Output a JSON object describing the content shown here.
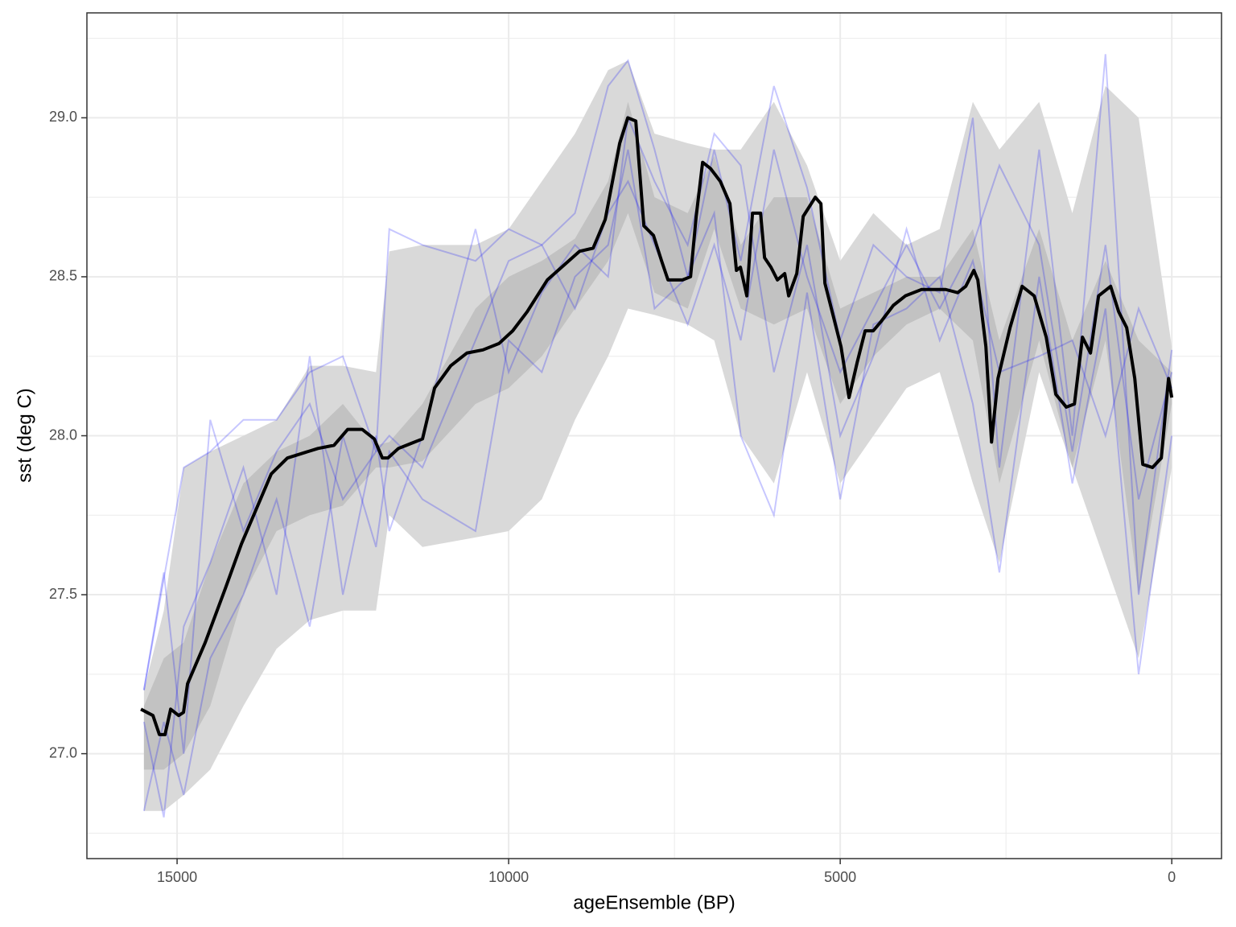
{
  "chart_data": {
    "type": "line",
    "x_label": "ageEnsemble (BP)",
    "y_label": "sst (deg C)",
    "xlim": [
      16360,
      -750
    ],
    "ylim": [
      26.67,
      29.33
    ],
    "xticks": [
      15000,
      10000,
      5000,
      0
    ],
    "yticks": [
      {
        "value": 27,
        "label": "27.0"
      },
      {
        "value": 27.5,
        "label": "27.5"
      },
      {
        "value": 28,
        "label": "28.0"
      },
      {
        "value": 28.5,
        "label": "28.5"
      },
      {
        "value": 29,
        "label": "29.0"
      }
    ],
    "x_minor_grid": [
      12500,
      7500,
      2500
    ],
    "y_minor_grid": [
      26.75,
      27.25,
      27.75,
      28.25,
      28.75,
      29.25
    ],
    "grid": true,
    "bands": {
      "x": [
        15500,
        15200,
        14900,
        14500,
        14000,
        13500,
        13000,
        12500,
        12000,
        11800,
        11300,
        10500,
        10000,
        9500,
        9000,
        8500,
        8200,
        7800,
        7300,
        6900,
        6500,
        6000,
        5500,
        5000,
        4500,
        4000,
        3500,
        3000,
        2600,
        2000,
        1500,
        1000,
        500,
        0
      ],
      "outer": {
        "color": "#d9d9d9",
        "upper": [
          27.2,
          27.45,
          27.9,
          27.95,
          28.0,
          28.05,
          28.22,
          28.22,
          28.2,
          28.58,
          28.6,
          28.6,
          28.65,
          28.8,
          28.95,
          29.15,
          29.18,
          28.95,
          28.92,
          28.9,
          28.9,
          29.05,
          28.85,
          28.55,
          28.7,
          28.6,
          28.65,
          29.05,
          28.9,
          29.05,
          28.7,
          29.1,
          29.0,
          28.28
        ],
        "lower": [
          26.82,
          26.82,
          26.87,
          26.95,
          27.15,
          27.33,
          27.42,
          27.45,
          27.45,
          27.75,
          27.65,
          27.68,
          27.7,
          27.8,
          28.05,
          28.25,
          28.4,
          28.38,
          28.35,
          28.3,
          28.0,
          27.85,
          28.2,
          27.85,
          28.0,
          28.15,
          28.2,
          27.85,
          27.6,
          28.2,
          27.9,
          27.6,
          27.3,
          27.9
        ]
      },
      "inner": {
        "color": "#b3b3b3",
        "upper": [
          27.15,
          27.3,
          27.35,
          27.6,
          27.85,
          27.95,
          28.0,
          28.1,
          27.97,
          27.98,
          28.1,
          28.4,
          28.5,
          28.55,
          28.62,
          28.8,
          29.05,
          28.75,
          28.7,
          28.88,
          28.6,
          28.75,
          28.75,
          28.4,
          28.45,
          28.5,
          28.5,
          28.65,
          28.3,
          28.65,
          28.3,
          28.55,
          28.3,
          28.2
        ],
        "lower": [
          26.95,
          26.95,
          27.0,
          27.15,
          27.5,
          27.7,
          27.75,
          27.78,
          27.9,
          27.9,
          27.92,
          28.1,
          28.15,
          28.25,
          28.4,
          28.55,
          28.7,
          28.45,
          28.4,
          28.65,
          28.4,
          28.35,
          28.4,
          28.1,
          28.25,
          28.35,
          28.4,
          28.3,
          27.85,
          28.3,
          27.9,
          28.3,
          27.5,
          28.1
        ]
      }
    },
    "ensemble": {
      "color": "#0000ff",
      "opacity": 0.22,
      "x": [
        15500,
        15200,
        14900,
        14500,
        14000,
        13500,
        13000,
        12500,
        12000,
        11800,
        11300,
        10500,
        10000,
        9500,
        9000,
        8500,
        8200,
        7800,
        7300,
        6900,
        6500,
        6000,
        5500,
        5000,
        4500,
        4000,
        3500,
        3000,
        2600,
        2000,
        1500,
        1000,
        500,
        0
      ],
      "members": [
        [
          27.2,
          27.55,
          27.9,
          27.95,
          28.05,
          28.05,
          28.2,
          28.25,
          27.95,
          28.65,
          28.6,
          28.55,
          28.65,
          28.6,
          28.7,
          29.1,
          29.18,
          28.9,
          28.5,
          28.9,
          28.55,
          29.1,
          28.78,
          28.3,
          28.6,
          28.5,
          28.45,
          29.0,
          27.9,
          28.9,
          28.0,
          29.2,
          27.5,
          28.27
        ],
        [
          26.82,
          27.1,
          26.87,
          27.3,
          27.5,
          27.8,
          27.4,
          28.0,
          27.65,
          27.95,
          27.8,
          27.7,
          28.3,
          28.2,
          28.5,
          28.6,
          28.9,
          28.4,
          28.5,
          28.7,
          28.0,
          27.75,
          28.45,
          27.8,
          28.35,
          28.4,
          28.5,
          28.1,
          27.57,
          28.5,
          27.85,
          28.4,
          27.25,
          28.0
        ],
        [
          27.1,
          26.8,
          27.4,
          27.6,
          27.9,
          27.5,
          28.25,
          27.5,
          28.0,
          27.7,
          28.0,
          28.65,
          28.2,
          28.45,
          28.6,
          28.5,
          29.0,
          28.8,
          28.6,
          28.95,
          28.85,
          28.2,
          28.6,
          28.0,
          28.25,
          28.65,
          28.3,
          28.55,
          28.2,
          28.25,
          28.3,
          28.0,
          28.4,
          28.15
        ],
        [
          27.2,
          27.57,
          27.0,
          28.05,
          27.7,
          27.95,
          28.1,
          27.8,
          27.95,
          28.0,
          27.9,
          28.3,
          28.55,
          28.6,
          28.4,
          28.7,
          28.8,
          28.6,
          28.35,
          28.6,
          28.3,
          28.9,
          28.5,
          28.2,
          28.4,
          28.6,
          28.4,
          28.6,
          28.85,
          28.6,
          27.95,
          28.6,
          27.8,
          28.2
        ]
      ]
    },
    "median": {
      "color": "#000000",
      "x": [
        15546,
        15364,
        15267,
        15182,
        15097,
        14976,
        14903,
        14842,
        14575,
        14272,
        14029,
        13580,
        13337,
        12876,
        12633,
        12427,
        12209,
        12027,
        11905,
        11820,
        11663,
        11299,
        11117,
        10874,
        10631,
        10388,
        10146,
        9939,
        9721,
        9417,
        8932,
        8726,
        8544,
        8325,
        8204,
        8083,
        7961,
        7816,
        7694,
        7597,
        7379,
        7257,
        7172,
        7075,
        6954,
        6808,
        6663,
        6565,
        6505,
        6408,
        6323,
        6201,
        6141,
        6044,
        5947,
        5837,
        5777,
        5655,
        5558,
        5376,
        5291,
        5231,
        5109,
        4988,
        4867,
        4745,
        4624,
        4502,
        4381,
        4199,
        4017,
        3774,
        3592,
        3410,
        3228,
        3107,
        2985,
        2925,
        2803,
        2718,
        2621,
        2439,
        2257,
        2075,
        1893,
        1748,
        1590,
        1468,
        1347,
        1226,
        1104,
        922,
        801,
        680,
        558,
        437,
        291,
        158,
        49,
        0
      ],
      "values": [
        27.14,
        27.12,
        27.06,
        27.06,
        27.14,
        27.12,
        27.13,
        27.22,
        27.35,
        27.52,
        27.66,
        27.88,
        27.93,
        27.96,
        27.97,
        28.02,
        28.02,
        27.99,
        27.93,
        27.93,
        27.96,
        27.99,
        28.15,
        28.22,
        28.26,
        28.27,
        28.29,
        28.33,
        28.39,
        28.49,
        28.58,
        28.59,
        28.68,
        28.92,
        29.0,
        28.99,
        28.66,
        28.63,
        28.55,
        28.49,
        28.49,
        28.5,
        28.69,
        28.86,
        28.84,
        28.8,
        28.73,
        28.52,
        28.53,
        28.44,
        28.7,
        28.7,
        28.56,
        28.53,
        28.49,
        28.51,
        28.44,
        28.51,
        28.69,
        28.75,
        28.73,
        28.48,
        28.38,
        28.28,
        28.12,
        28.23,
        28.33,
        28.33,
        28.36,
        28.41,
        28.44,
        28.46,
        28.46,
        28.46,
        28.45,
        28.47,
        28.52,
        28.49,
        28.28,
        27.98,
        28.18,
        28.34,
        28.47,
        28.44,
        28.31,
        28.13,
        28.09,
        28.1,
        28.31,
        28.26,
        28.44,
        28.47,
        28.39,
        28.34,
        28.18,
        27.91,
        27.9,
        27.93,
        28.18,
        28.12
      ]
    }
  }
}
